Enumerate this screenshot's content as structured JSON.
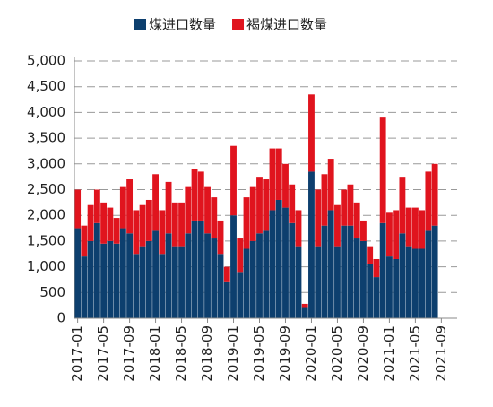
{
  "chart_data": {
    "type": "stacked_bar",
    "categories": [
      "2017-01",
      null,
      null,
      null,
      "2017-05",
      null,
      null,
      null,
      "2017-09",
      null,
      null,
      null,
      "2018-01",
      null,
      null,
      null,
      "2018-05",
      null,
      null,
      null,
      "2018-09",
      null,
      null,
      null,
      "2019-01",
      null,
      null,
      null,
      "2019-05",
      null,
      null,
      null,
      "2019-09",
      null,
      null,
      null,
      "2020-01",
      null,
      null,
      null,
      "2020-05",
      null,
      null,
      null,
      "2020-09",
      null,
      null,
      null,
      "2021-01",
      null,
      null,
      null,
      "2021-05",
      null,
      null,
      null,
      "2021-09"
    ],
    "series": [
      {
        "name": "煤进口数量",
        "color": "#0d3f6e",
        "values": [
          1750,
          1200,
          1500,
          1850,
          1450,
          1500,
          1450,
          1750,
          1650,
          1250,
          1400,
          1500,
          1700,
          1250,
          1650,
          1400,
          1400,
          1650,
          1900,
          1900,
          1650,
          1550,
          1250,
          700,
          2000,
          900,
          1350,
          1500,
          1650,
          1700,
          2100,
          2300,
          2150,
          1850,
          1400,
          200,
          2850,
          1400,
          1800,
          2100,
          1400,
          1800,
          1800,
          1550,
          1500,
          1050,
          800,
          1850,
          1200,
          1150,
          1650,
          1400,
          1350,
          1350,
          1700,
          1800,
          null
        ]
      },
      {
        "name": "褐煤进口数量",
        "color": "#e0141e",
        "values": [
          750,
          600,
          700,
          650,
          800,
          650,
          500,
          800,
          1050,
          850,
          800,
          800,
          1100,
          850,
          1000,
          850,
          850,
          900,
          1000,
          950,
          900,
          800,
          650,
          300,
          1350,
          650,
          1000,
          1050,
          1100,
          1000,
          1200,
          1000,
          850,
          750,
          700,
          80,
          1500,
          1100,
          1000,
          1000,
          800,
          700,
          800,
          700,
          400,
          350,
          350,
          2050,
          850,
          950,
          1100,
          750,
          800,
          750,
          1150,
          1200,
          null
        ]
      }
    ],
    "ylim": [
      0,
      5000
    ],
    "yticks": [
      0,
      500,
      {
        "value": 1000,
        "label": "1,000"
      },
      {
        "value": 1500,
        "label": "1,500"
      },
      {
        "value": 2000,
        "label": "2,000"
      },
      {
        "value": 2500,
        "label": "2,500"
      },
      {
        "value": 3000,
        "label": "3,000"
      },
      {
        "value": 3500,
        "label": "3,500"
      },
      {
        "value": 4000,
        "label": "4,000"
      },
      {
        "value": 4500,
        "label": "4,500"
      },
      {
        "value": 5000,
        "label": "5,000"
      }
    ],
    "grid": true,
    "legend": "top"
  }
}
